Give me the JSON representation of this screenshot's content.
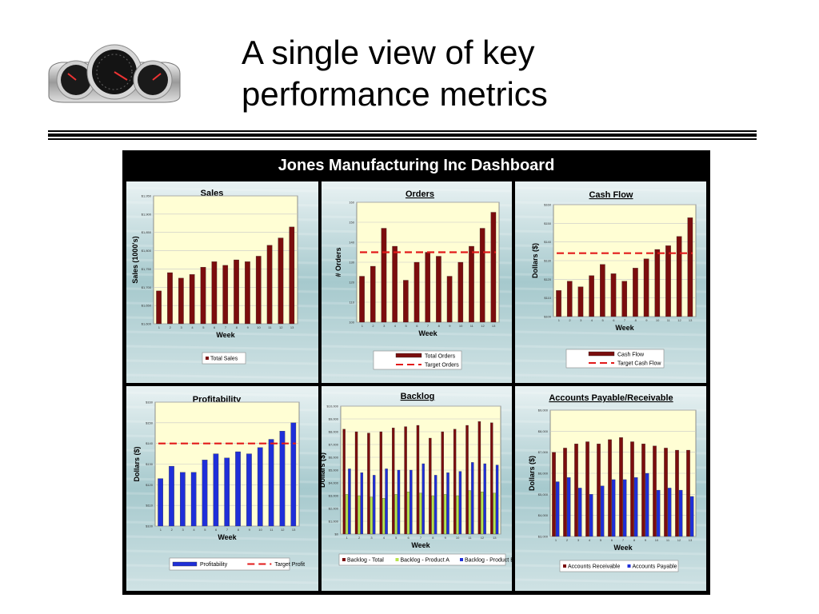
{
  "slide": {
    "title_line1": "A single view of key",
    "title_line2": "performance metrics"
  },
  "dashboard": {
    "title": "Jones Manufacturing Inc Dashboard"
  },
  "colors": {
    "maroon": "#7b0d0d",
    "blue": "#1f2fd8",
    "green": "#b7e34c",
    "target_red": "#e21a1a",
    "plot_bg": "#fffed4"
  },
  "chart_data": [
    {
      "id": "sales",
      "type": "bar",
      "title": "Sales",
      "xlabel": "Week",
      "ylabel": "Sales (1000's)",
      "categories": [
        "1",
        "2",
        "3",
        "4",
        "5",
        "6",
        "7",
        "8",
        "9",
        "10",
        "11",
        "12",
        "13"
      ],
      "ylim": [
        1600,
        1950
      ],
      "yticks": [
        "$1,600",
        "$1,650",
        "$1,700",
        "$1,750",
        "$1,800",
        "$1,850",
        "$1,900",
        "$1,950"
      ],
      "series": [
        {
          "name": "Total Sales",
          "values": [
            1690,
            1740,
            1725,
            1735,
            1755,
            1770,
            1760,
            1775,
            1770,
            1785,
            1815,
            1835,
            1865
          ],
          "color": "#7b0d0d"
        }
      ],
      "legend_position": "bottom"
    },
    {
      "id": "orders",
      "type": "bar",
      "title": "Orders",
      "xlabel": "Week",
      "ylabel": "# Orders",
      "categories": [
        "1",
        "2",
        "3",
        "4",
        "5",
        "6",
        "7",
        "8",
        "9",
        "10",
        "11",
        "12",
        "13"
      ],
      "ylim": [
        100,
        160
      ],
      "yticks": [
        "100",
        "110",
        "120",
        "130",
        "140",
        "150",
        "160"
      ],
      "series": [
        {
          "name": "Total Orders",
          "values": [
            123,
            128,
            147,
            138,
            121,
            130,
            135,
            133,
            123,
            130,
            138,
            147,
            155
          ],
          "color": "#7b0d0d"
        }
      ],
      "target": {
        "name": "Target Orders",
        "value": 135
      },
      "legend_position": "bottom"
    },
    {
      "id": "cashflow",
      "type": "bar",
      "title": "Cash Flow",
      "xlabel": "Week",
      "ylabel": "Dollars ($)",
      "categories": [
        "1",
        "2",
        "3",
        "4",
        "5",
        "6",
        "7",
        "8",
        "9",
        "10",
        "11",
        "12",
        "13"
      ],
      "ylim": [
        100,
        160
      ],
      "yticks": [
        "$100",
        "$110",
        "$120",
        "$130",
        "$140",
        "$150",
        "$160"
      ],
      "series": [
        {
          "name": "Cash Flow",
          "values": [
            114,
            119,
            116,
            122,
            128,
            123,
            119,
            126,
            131,
            136,
            138,
            143,
            153
          ],
          "color": "#7b0d0d"
        }
      ],
      "target": {
        "name": "Target Cash Flow",
        "value": 134
      },
      "legend_position": "bottom"
    },
    {
      "id": "profitability",
      "type": "bar",
      "title": "Profitability",
      "xlabel": "Week",
      "ylabel": "Dollars ($)",
      "categories": [
        "1",
        "2",
        "3",
        "4",
        "5",
        "6",
        "7",
        "8",
        "9",
        "10",
        "11",
        "12",
        "13"
      ],
      "ylim": [
        100,
        160
      ],
      "yticks": [
        "$100",
        "$110",
        "$120",
        "$130",
        "$140",
        "$150",
        "$160"
      ],
      "series": [
        {
          "name": "Profitability",
          "values": [
            123,
            129,
            126,
            126,
            132,
            135,
            133,
            136,
            135,
            138,
            142,
            146,
            150
          ],
          "color": "#1f2fd8"
        }
      ],
      "target": {
        "name": "Target Profit",
        "value": 140
      },
      "legend_position": "bottom"
    },
    {
      "id": "backlog",
      "type": "bar",
      "title": "Backlog",
      "xlabel": "Week",
      "ylabel": "Dollars ($)",
      "categories": [
        "1",
        "2",
        "3",
        "4",
        "5",
        "6",
        "7",
        "8",
        "9",
        "10",
        "11",
        "12",
        "13"
      ],
      "ylim": [
        0,
        10000
      ],
      "yticks": [
        "$0",
        "$1,000",
        "$2,000",
        "$3,000",
        "$4,000",
        "$5,000",
        "$6,000",
        "$7,000",
        "$8,000",
        "$9,000",
        "$10,000"
      ],
      "series": [
        {
          "name": "Backlog - Total",
          "values": [
            8200,
            8000,
            7900,
            8000,
            8300,
            8400,
            8500,
            7500,
            8000,
            8200,
            8500,
            8800,
            8700
          ],
          "color": "#7b0d0d"
        },
        {
          "name": "Backlog - Product A",
          "values": [
            3100,
            3000,
            2900,
            2800,
            3100,
            3300,
            3200,
            3000,
            3100,
            3000,
            3400,
            3300,
            3200
          ],
          "color": "#b7e34c"
        },
        {
          "name": "Backlog - Product B",
          "values": [
            5100,
            4800,
            4600,
            5100,
            5000,
            5000,
            5500,
            4600,
            4800,
            4900,
            5600,
            5500,
            5400
          ],
          "color": "#1f2fd8"
        }
      ],
      "legend_position": "bottom"
    },
    {
      "id": "apar",
      "type": "bar",
      "title": "Accounts Payable/Receivable",
      "xlabel": "Week",
      "ylabel": "Dollars ($)",
      "categories": [
        "1",
        "2",
        "3",
        "4",
        "5",
        "6",
        "7",
        "8",
        "9",
        "10",
        "11",
        "12",
        "13"
      ],
      "ylim": [
        3000,
        9000
      ],
      "yticks": [
        "$3,000",
        "$4,000",
        "$5,000",
        "$6,000",
        "$7,000",
        "$8,000",
        "$9,000"
      ],
      "series": [
        {
          "name": "Accounts Receivable",
          "values": [
            7000,
            7200,
            7400,
            7500,
            7400,
            7600,
            7700,
            7500,
            7400,
            7300,
            7200,
            7100,
            7100
          ],
          "color": "#7b0d0d"
        },
        {
          "name": "Accounts Payable",
          "values": [
            5600,
            5800,
            5300,
            5000,
            5400,
            5700,
            5700,
            5800,
            6000,
            5200,
            5300,
            5200,
            4900
          ],
          "color": "#1f2fd8"
        }
      ],
      "legend_position": "bottom"
    }
  ]
}
